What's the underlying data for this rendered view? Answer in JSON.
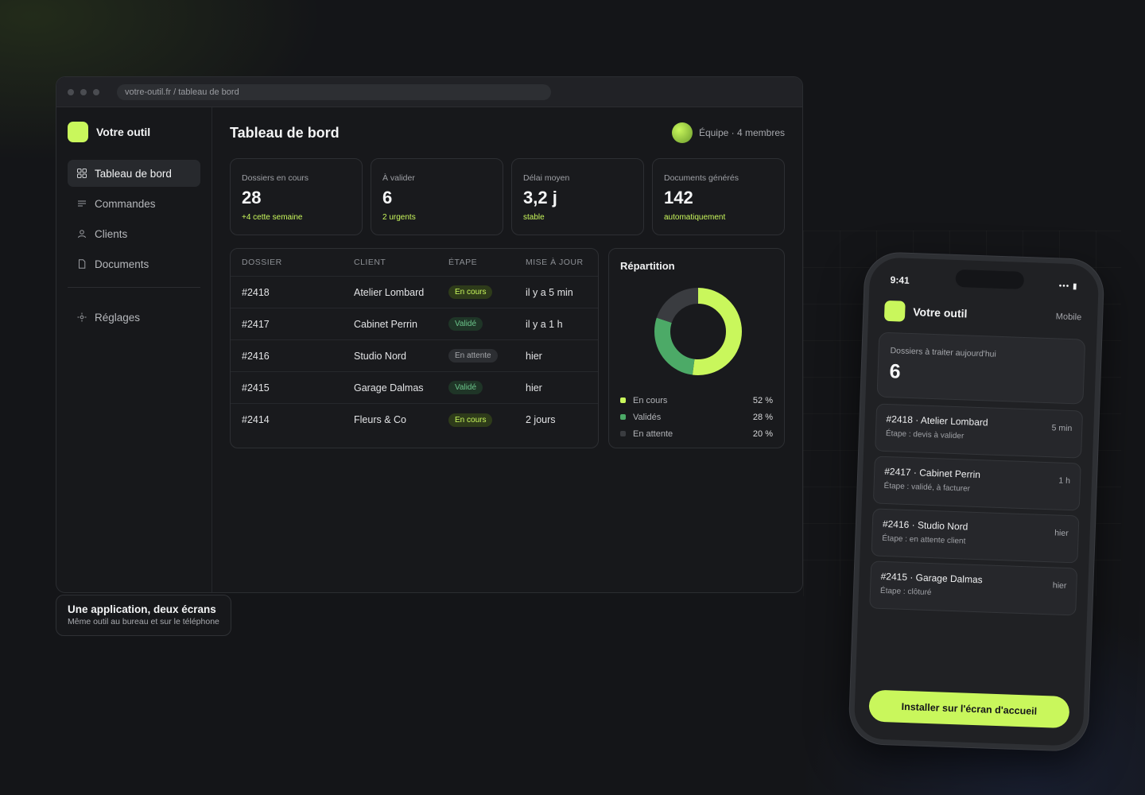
{
  "window": {
    "url": "votre-outil.fr / tableau de bord"
  },
  "sidebar": {
    "brand": "Votre outil",
    "items": [
      {
        "label": "Tableau de bord",
        "icon": "grid-icon",
        "active": true
      },
      {
        "label": "Commandes",
        "icon": "lines-icon"
      },
      {
        "label": "Clients",
        "icon": "user-icon"
      },
      {
        "label": "Documents",
        "icon": "file-icon"
      }
    ],
    "settings": {
      "label": "Réglages",
      "icon": "gear-icon"
    }
  },
  "header": {
    "title": "Tableau de bord",
    "team": "Équipe · 4 membres"
  },
  "kpis": [
    {
      "label": "Dossiers en cours",
      "value": "28",
      "sub": "+4 cette semaine"
    },
    {
      "label": "À valider",
      "value": "6",
      "sub": "2 urgents"
    },
    {
      "label": "Délai moyen",
      "value": "3,2 j",
      "sub": "stable"
    },
    {
      "label": "Documents générés",
      "value": "142",
      "sub": "automatiquement"
    }
  ],
  "table": {
    "headers": [
      "DOSSIER",
      "CLIENT",
      "ÉTAPE",
      "MISE À JOUR"
    ],
    "rows": [
      {
        "dossier": "#2418",
        "client": "Atelier Lombard",
        "etape": "En cours",
        "status": "encours",
        "maj": "il y a 5 min"
      },
      {
        "dossier": "#2417",
        "client": "Cabinet Perrin",
        "etape": "Validé",
        "status": "valide",
        "maj": "il y a 1 h"
      },
      {
        "dossier": "#2416",
        "client": "Studio Nord",
        "etape": "En attente",
        "status": "attente",
        "maj": "hier"
      },
      {
        "dossier": "#2415",
        "client": "Garage Dalmas",
        "etape": "Validé",
        "status": "valide",
        "maj": "hier"
      },
      {
        "dossier": "#2414",
        "client": "Fleurs & Co",
        "etape": "En cours",
        "status": "encours",
        "maj": "2 jours"
      }
    ]
  },
  "repartition": {
    "title": "Répartition",
    "segments": [
      {
        "label": "En cours",
        "value": 52,
        "display": "52 %",
        "color": "#c9f75c"
      },
      {
        "label": "Validés",
        "value": 28,
        "display": "28 %",
        "color": "#4caa67"
      },
      {
        "label": "En attente",
        "value": 20,
        "display": "20 %",
        "color": "#3a3c40"
      }
    ]
  },
  "caption": {
    "title": "Une application, deux écrans",
    "subtitle": "Même outil au bureau et sur le téléphone"
  },
  "phone": {
    "time": "9:41",
    "brand": "Votre outil",
    "tag": "Mobile",
    "kpi_label": "Dossiers à traiter aujourd'hui",
    "kpi_value": "6",
    "items": [
      {
        "title": "#2418 · Atelier Lombard",
        "sub": "Étape : devis à valider",
        "time": "5 min"
      },
      {
        "title": "#2417 · Cabinet Perrin",
        "sub": "Étape : validé, à facturer",
        "time": "1 h"
      },
      {
        "title": "#2416 · Studio Nord",
        "sub": "Étape : en attente client",
        "time": "hier"
      },
      {
        "title": "#2415 · Garage Dalmas",
        "sub": "Étape : clôturé",
        "time": "hier"
      }
    ],
    "cta": "Installer sur l'écran d'accueil"
  },
  "colors": {
    "accent": "#c9f75c",
    "green": "#4caa67",
    "background": "#141518"
  }
}
